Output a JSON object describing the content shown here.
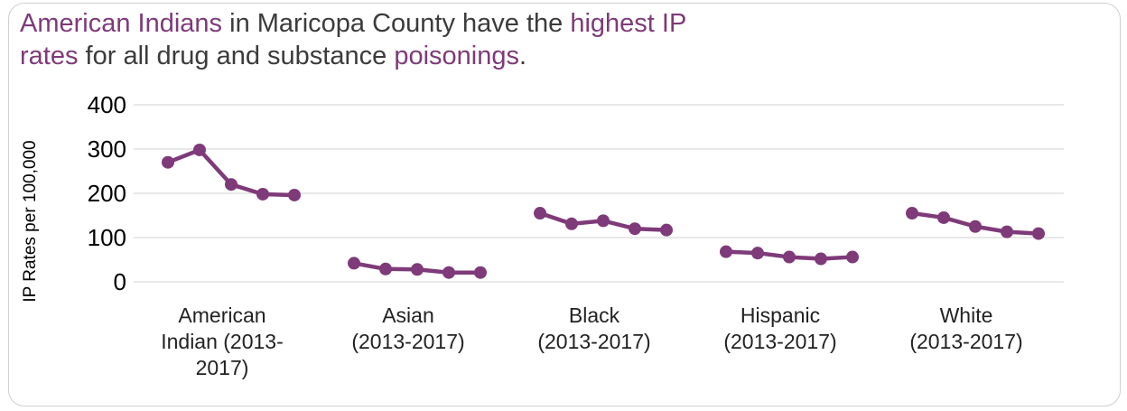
{
  "title": {
    "segments": [
      {
        "text": "American Indians",
        "highlight": true
      },
      {
        "text": " in Maricopa County have the ",
        "highlight": false
      },
      {
        "text": "highest IP",
        "highlight": true
      },
      {
        "text": "\n",
        "highlight": false
      },
      {
        "text": "rates",
        "highlight": true
      },
      {
        "text": " for all drug and substance ",
        "highlight": false
      },
      {
        "text": "poisonings",
        "highlight": true
      },
      {
        "text": ".",
        "highlight": false
      }
    ]
  },
  "colors": {
    "accent": "#7e3a79",
    "text": "#3b3b3b",
    "grid": "#d9d9d9",
    "series": "#7e3a79"
  },
  "chart_data": {
    "type": "line",
    "ylabel": "IP Rates per 100,000",
    "ylim": [
      0,
      400
    ],
    "yticks": [
      0,
      100,
      200,
      300,
      400
    ],
    "grid": true,
    "groups": [
      {
        "label": [
          "American",
          "Indian (2013-",
          "2017)"
        ],
        "values": [
          270,
          298,
          220,
          198,
          196
        ]
      },
      {
        "label": [
          "Asian",
          "(2013-2017)"
        ],
        "values": [
          42,
          29,
          28,
          21,
          21
        ]
      },
      {
        "label": [
          "Black",
          "(2013-2017)"
        ],
        "values": [
          155,
          131,
          138,
          120,
          117
        ]
      },
      {
        "label": [
          "Hispanic",
          "(2013-2017)"
        ],
        "values": [
          68,
          65,
          56,
          52,
          56
        ]
      },
      {
        "label": [
          "White",
          "(2013-2017)"
        ],
        "values": [
          155,
          145,
          125,
          113,
          109
        ]
      }
    ]
  }
}
